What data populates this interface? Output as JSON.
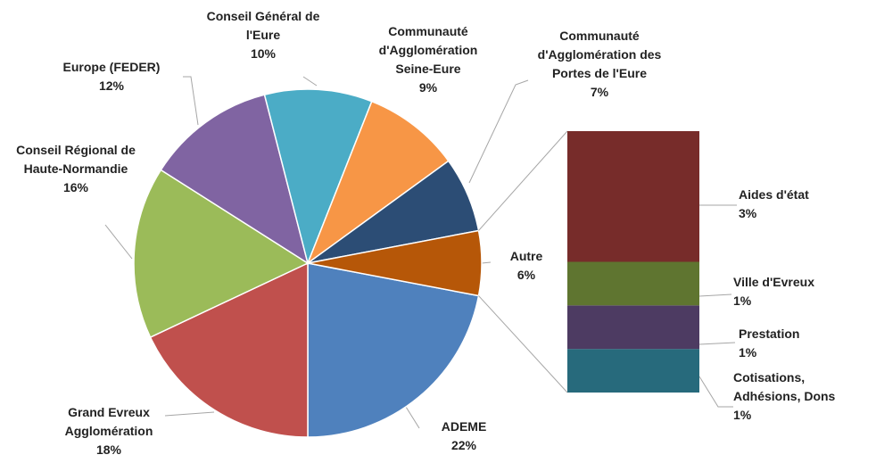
{
  "chart_data": [
    {
      "type": "pie",
      "categories": [
        "ADEME",
        "Grand Evreux Agglomération",
        "Conseil Régional de Haute-Normandie",
        "Europe (FEDER)",
        "Conseil Général de l'Eure",
        "Communauté d'Agglomération Seine-Eure",
        "Communauté d'Agglomération des Portes de l'Eure",
        "Autre"
      ],
      "values": [
        22,
        18,
        16,
        12,
        10,
        9,
        7,
        6
      ],
      "value_labels": [
        "22%",
        "18%",
        "16%",
        "12%",
        "10%",
        "9%",
        "7%",
        "6%"
      ],
      "colors": [
        "#4f81bd",
        "#c0504d",
        "#9bbb59",
        "#8064a2",
        "#4bacc6",
        "#f79646",
        "#2c4d75",
        "#b65708"
      ]
    },
    {
      "type": "bar",
      "categories": [
        "Aides d'état",
        "Ville d'Evreux",
        "Prestation",
        "Cotisations, Adhésions, Dons"
      ],
      "values": [
        3,
        1,
        1,
        1
      ],
      "value_labels": [
        "3%",
        "1%",
        "1%",
        "1%"
      ],
      "colors": [
        "#772c2a",
        "#5f7530",
        "#4d3b62",
        "#276a7c"
      ]
    }
  ]
}
